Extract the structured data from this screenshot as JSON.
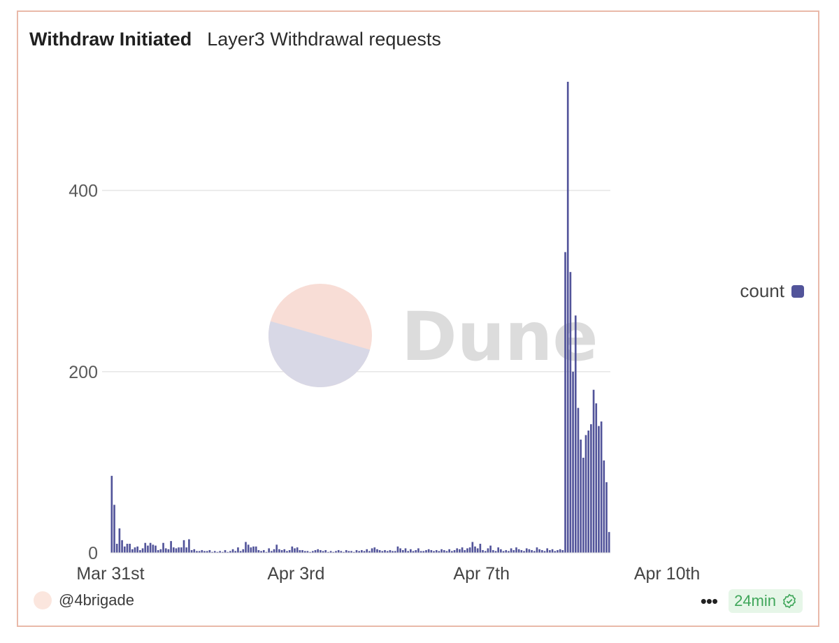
{
  "header": {
    "title": "Withdraw Initiated",
    "subtitle": "Layer3 Withdrawal requests"
  },
  "legend": {
    "label": "count",
    "color": "#52549a"
  },
  "watermark": {
    "text": "Dune"
  },
  "footer": {
    "author": "@4brigade",
    "more_label": "•••",
    "refresh_label": "24min",
    "refresh_icon": "check-badge-icon"
  },
  "colors": {
    "bar": "#52549a",
    "grid": "#e6e6e6",
    "border": "#e9b9a9",
    "badge_bg": "#e6f6e8",
    "badge_text": "#3fa65a"
  },
  "chart_data": {
    "type": "bar",
    "title": "Withdraw Initiated",
    "subtitle": "Layer3 Withdrawal requests",
    "xlabel": "",
    "ylabel": "",
    "ylim": [
      0,
      520
    ],
    "yticks": [
      0,
      200,
      400
    ],
    "xticks": [
      {
        "label": "Mar 31st",
        "index": 0
      },
      {
        "label": "Apr 3rd",
        "index": 72
      },
      {
        "label": "Apr 7th",
        "index": 144
      },
      {
        "label": "Apr 10th",
        "index": 216
      }
    ],
    "grid": true,
    "legend_position": "right",
    "series": [
      {
        "name": "count",
        "values": [
          85,
          53,
          10,
          27,
          14,
          7,
          10,
          10,
          4,
          6,
          7,
          3,
          5,
          11,
          8,
          11,
          9,
          8,
          3,
          4,
          11,
          5,
          4,
          13,
          6,
          5,
          6,
          6,
          14,
          6,
          15,
          3,
          4,
          2,
          2,
          3,
          2,
          2,
          3,
          1,
          2,
          1,
          2,
          1,
          3,
          1,
          2,
          4,
          2,
          6,
          2,
          4,
          12,
          9,
          6,
          7,
          7,
          3,
          2,
          3,
          1,
          5,
          2,
          4,
          9,
          4,
          3,
          4,
          2,
          3,
          7,
          5,
          6,
          3,
          3,
          2,
          2,
          1,
          2,
          3,
          4,
          3,
          2,
          3,
          1,
          2,
          1,
          2,
          3,
          2,
          1,
          3,
          2,
          2,
          1,
          3,
          2,
          3,
          2,
          4,
          2,
          5,
          6,
          4,
          3,
          2,
          3,
          2,
          3,
          2,
          2,
          7,
          5,
          3,
          5,
          2,
          4,
          2,
          3,
          5,
          2,
          2,
          3,
          4,
          3,
          2,
          3,
          2,
          4,
          3,
          2,
          4,
          2,
          3,
          5,
          4,
          6,
          3,
          5,
          6,
          12,
          7,
          5,
          10,
          3,
          2,
          5,
          8,
          3,
          2,
          6,
          4,
          2,
          3,
          2,
          5,
          3,
          6,
          4,
          3,
          2,
          5,
          4,
          3,
          2,
          6,
          4,
          3,
          2,
          5,
          3,
          4,
          2,
          3,
          4,
          3,
          332,
          520,
          310,
          200,
          262,
          160,
          125,
          105,
          130,
          135,
          142,
          180,
          165,
          140,
          145,
          102,
          78,
          23
        ]
      }
    ]
  }
}
